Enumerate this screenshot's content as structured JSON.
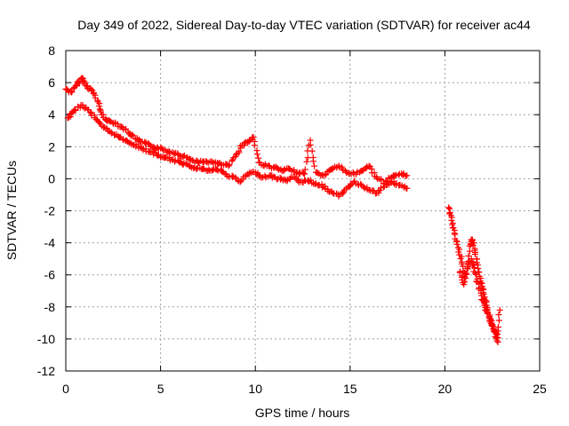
{
  "chart_data": {
    "type": "scatter",
    "title": "Day 349 of 2022, Sidereal Day-to-day VTEC variation (SDTVAR) for receiver ac44",
    "xlabel": "GPS time / hours",
    "ylabel": "SDTVAR / TECUs",
    "xlim": [
      0,
      25
    ],
    "ylim": [
      -12,
      8
    ],
    "xticks": [
      0,
      5,
      10,
      15,
      20,
      25
    ],
    "yticks": [
      -12,
      -10,
      -8,
      -6,
      -4,
      -2,
      0,
      2,
      4,
      6,
      8
    ],
    "xtick_labels": [
      "0",
      "5",
      "10",
      "15",
      "20",
      "25"
    ],
    "ytick_labels": [
      "-12",
      "-10",
      "-8",
      "-6",
      "-4",
      "-2",
      "0",
      "2",
      "4",
      "6",
      "8"
    ],
    "grid": true,
    "marker": "+",
    "color": "#ff0000",
    "series": [
      {
        "name": "SDTVAR",
        "segments": [
          {
            "points": [
              [
                0.0,
                5.6
              ],
              [
                0.3,
                5.4
              ],
              [
                0.6,
                5.9
              ],
              [
                0.85,
                6.3
              ],
              [
                1.1,
                5.8
              ],
              [
                1.4,
                5.5
              ],
              [
                1.7,
                4.8
              ],
              [
                1.9,
                4.0
              ],
              [
                2.2,
                3.6
              ],
              [
                2.6,
                3.5
              ],
              [
                3.0,
                3.2
              ],
              [
                3.4,
                2.8
              ],
              [
                3.8,
                2.4
              ],
              [
                4.2,
                2.2
              ],
              [
                4.6,
                2.0
              ],
              [
                5.0,
                1.9
              ],
              [
                5.4,
                1.7
              ],
              [
                5.8,
                1.6
              ],
              [
                6.2,
                1.4
              ],
              [
                6.6,
                1.2
              ],
              [
                7.0,
                1.0
              ],
              [
                7.4,
                1.1
              ],
              [
                7.8,
                1.0
              ],
              [
                8.2,
                0.9
              ],
              [
                8.6,
                0.8
              ],
              [
                9.0,
                1.5
              ],
              [
                9.3,
                2.1
              ],
              [
                9.6,
                2.3
              ],
              [
                9.9,
                2.6
              ],
              [
                10.2,
                1.0
              ],
              [
                10.6,
                0.8
              ],
              [
                11.0,
                0.7
              ],
              [
                11.4,
                0.5
              ],
              [
                11.8,
                0.6
              ],
              [
                12.2,
                0.4
              ],
              [
                12.6,
                0.3
              ],
              [
                12.9,
                2.4
              ],
              [
                13.2,
                0.4
              ],
              [
                13.6,
                0.2
              ],
              [
                14.0,
                0.6
              ],
              [
                14.4,
                0.8
              ],
              [
                14.8,
                0.4
              ],
              [
                15.2,
                0.3
              ],
              [
                15.6,
                0.5
              ],
              [
                16.0,
                0.8
              ],
              [
                16.4,
                0.1
              ],
              [
                16.8,
                -0.3
              ],
              [
                17.2,
                0.1
              ],
              [
                17.6,
                0.3
              ],
              [
                18.0,
                0.2
              ],
              [
                0.1,
                3.8
              ],
              [
                0.4,
                4.2
              ],
              [
                0.8,
                4.6
              ],
              [
                1.2,
                4.3
              ],
              [
                1.6,
                3.7
              ],
              [
                2.0,
                3.2
              ],
              [
                2.4,
                2.9
              ],
              [
                2.8,
                2.6
              ],
              [
                3.2,
                2.4
              ],
              [
                3.6,
                2.1
              ],
              [
                4.0,
                1.9
              ],
              [
                4.4,
                1.7
              ],
              [
                4.8,
                1.5
              ],
              [
                5.2,
                1.3
              ],
              [
                5.6,
                1.2
              ],
              [
                6.0,
                1.0
              ],
              [
                6.4,
                0.9
              ],
              [
                6.8,
                0.7
              ],
              [
                7.2,
                0.6
              ],
              [
                7.6,
                0.5
              ],
              [
                8.0,
                0.6
              ],
              [
                8.4,
                0.3
              ],
              [
                8.8,
                0.1
              ],
              [
                9.2,
                -0.2
              ],
              [
                9.6,
                0.3
              ],
              [
                10.0,
                0.4
              ],
              [
                10.4,
                0.1
              ],
              [
                10.8,
                0.2
              ],
              [
                11.2,
                0.0
              ],
              [
                11.6,
                -0.1
              ],
              [
                12.0,
                0.1
              ],
              [
                12.4,
                -0.2
              ],
              [
                12.8,
                -0.1
              ],
              [
                13.2,
                -0.3
              ],
              [
                13.6,
                -0.5
              ],
              [
                14.0,
                -0.8
              ],
              [
                14.4,
                -1.1
              ],
              [
                14.8,
                -0.6
              ],
              [
                15.2,
                -0.2
              ],
              [
                15.6,
                -0.4
              ],
              [
                16.0,
                -0.7
              ],
              [
                16.4,
                -0.9
              ],
              [
                16.8,
                -0.5
              ],
              [
                17.2,
                -0.2
              ],
              [
                17.6,
                -0.4
              ],
              [
                18.0,
                -0.6
              ]
            ]
          },
          {
            "points": [
              [
                20.2,
                -1.8
              ],
              [
                20.35,
                -2.6
              ],
              [
                20.5,
                -3.4
              ],
              [
                20.7,
                -4.3
              ],
              [
                20.9,
                -5.2
              ],
              [
                21.1,
                -6.2
              ],
              [
                21.3,
                -4.2
              ],
              [
                21.45,
                -3.8
              ],
              [
                21.6,
                -4.6
              ],
              [
                21.75,
                -5.6
              ],
              [
                21.9,
                -6.5
              ],
              [
                22.05,
                -7.2
              ],
              [
                22.2,
                -7.9
              ],
              [
                22.35,
                -8.6
              ],
              [
                22.5,
                -9.1
              ],
              [
                22.65,
                -9.6
              ],
              [
                22.8,
                -10.2
              ],
              [
                22.9,
                -8.2
              ],
              [
                20.8,
                -5.8
              ],
              [
                21.0,
                -6.6
              ],
              [
                21.2,
                -5.5
              ],
              [
                21.4,
                -5.0
              ],
              [
                21.6,
                -5.9
              ],
              [
                21.8,
                -6.8
              ],
              [
                22.0,
                -7.6
              ],
              [
                22.2,
                -8.3
              ],
              [
                22.4,
                -8.9
              ],
              [
                22.6,
                -9.4
              ],
              [
                22.75,
                -9.9
              ]
            ]
          }
        ]
      }
    ]
  }
}
